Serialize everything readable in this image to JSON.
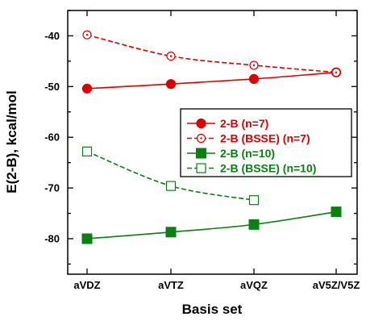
{
  "chart_data": {
    "type": "line",
    "title": "",
    "xlabel": "Basis set",
    "ylabel": "E(2-B), kcal/mol",
    "categories": [
      "aVDZ",
      "aVTZ",
      "aVQZ",
      "aV5Z/V5Z"
    ],
    "ylim": [
      -87,
      -35
    ],
    "yticks": [
      -40,
      -50,
      -60,
      -70,
      -80
    ],
    "grid": false,
    "legend_position": "center-right",
    "series": [
      {
        "name": "2-B (n=7)",
        "values": [
          -50.4,
          -49.5,
          -48.5,
          -47.2
        ],
        "color": "#dd0000",
        "marker": "filled-circle",
        "line": "solid"
      },
      {
        "name": "2-B (BSSE) (n=7)",
        "values": [
          -39.8,
          -44.0,
          -45.8,
          -47.2
        ],
        "color": "#dd0000",
        "marker": "open-circle",
        "line": "dashed"
      },
      {
        "name": "2-B (n=10)",
        "values": [
          -80.0,
          -78.7,
          -77.2,
          -74.7
        ],
        "color": "#0a7f12",
        "marker": "filled-square",
        "line": "solid"
      },
      {
        "name": "2-B (BSSE) (n=10)",
        "values": [
          -62.8,
          -69.6,
          -72.4,
          null
        ],
        "color": "#0a7f12",
        "marker": "open-square",
        "line": "dashed"
      }
    ]
  }
}
